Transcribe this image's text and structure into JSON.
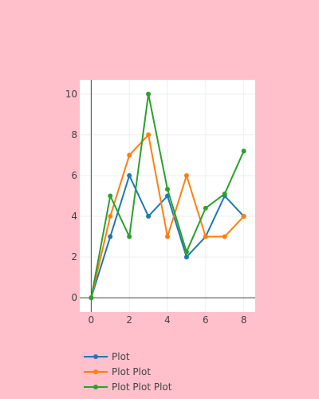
{
  "chart_data": {
    "type": "line",
    "xlim": [
      -0.6,
      8.6
    ],
    "ylim": [
      -0.7,
      10.7
    ],
    "x_ticks": [
      0,
      2,
      4,
      6,
      8
    ],
    "y_ticks": [
      0,
      2,
      4,
      6,
      8,
      10
    ],
    "grid": true,
    "plot_background": "#ffffff",
    "paper_background": "#ffc0cb",
    "legend_position": "bottom-left",
    "series": [
      {
        "name": "Plot",
        "color": "#1f77b4",
        "x": [
          0,
          1,
          2,
          3,
          4,
          5,
          6,
          7,
          8
        ],
        "y": [
          0,
          3,
          6,
          4,
          5,
          2,
          3,
          5,
          4
        ]
      },
      {
        "name": "Plot Plot",
        "color": "#ff7f0e",
        "x": [
          0,
          1,
          2,
          3,
          4,
          5,
          6,
          7,
          8
        ],
        "y": [
          0,
          4,
          7,
          8,
          3,
          6,
          3,
          3,
          4
        ]
      },
      {
        "name": "Plot Plot Plot",
        "color": "#2ca02c",
        "x": [
          0,
          1,
          2,
          3,
          4,
          5,
          6,
          7,
          8
        ],
        "y": [
          0,
          5,
          3,
          10,
          5.33,
          2.25,
          4.4,
          5.1,
          7.2
        ]
      }
    ]
  }
}
